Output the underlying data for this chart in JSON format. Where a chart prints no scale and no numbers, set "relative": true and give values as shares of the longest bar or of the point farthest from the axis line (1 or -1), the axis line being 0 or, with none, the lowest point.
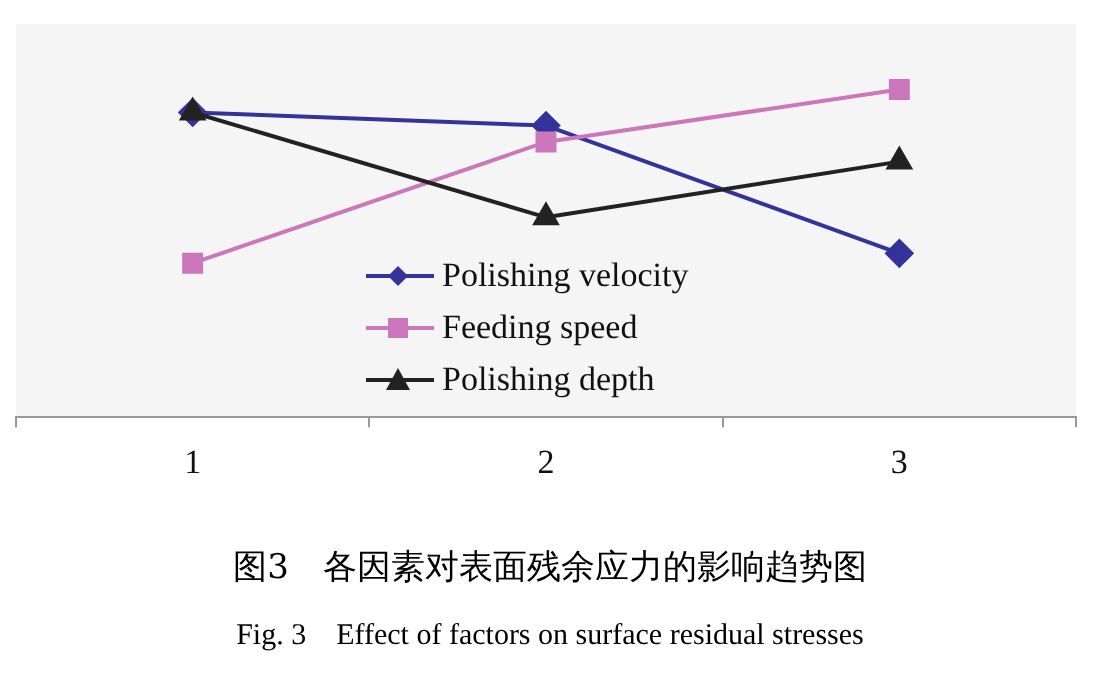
{
  "chart_data": {
    "type": "line",
    "relative": true,
    "categories": [
      "1",
      "2",
      "3"
    ],
    "series": [
      {
        "name": "Polishing velocity",
        "color": "#33339a",
        "marker": "diamond",
        "values": [
          0.93,
          0.89,
          0.5
        ]
      },
      {
        "name": "Feeding speed",
        "color": "#cc77bb",
        "marker": "square",
        "values": [
          0.47,
          0.84,
          1
        ]
      },
      {
        "name": "Polishing depth",
        "color": "#222222",
        "marker": "triangle",
        "values": [
          0.93,
          0.61,
          0.78
        ]
      }
    ],
    "legend": "bottom",
    "grid": false,
    "title": "图3　各因素对表面残余应力的影响趋势图",
    "subtitle": "Fig. 3　Effect of factors on surface residual stresses"
  }
}
